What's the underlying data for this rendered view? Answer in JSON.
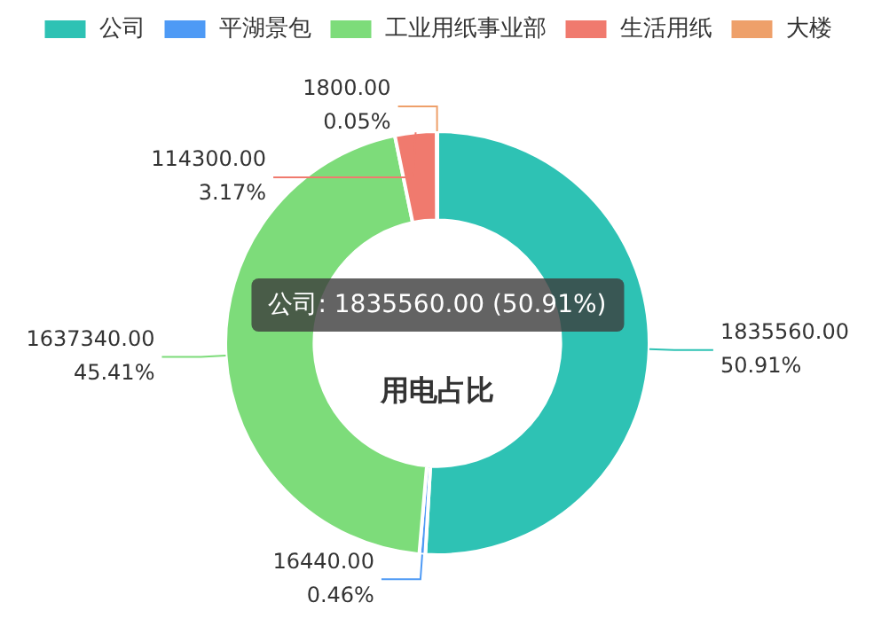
{
  "chart_data": {
    "type": "donut",
    "title": "用电占比",
    "categories": [
      "公司",
      "平湖景包",
      "工业用纸事业部",
      "生活用纸",
      "大楼"
    ],
    "values": [
      1835560,
      16440,
      1637340,
      114300,
      1800
    ],
    "colors": [
      "#2ec2b4",
      "#4e9af5",
      "#7ddc7a",
      "#f07a6e",
      "#eea06a"
    ],
    "value_labels": [
      "1835560.00\n50.91%",
      "16440.00\n0.46%",
      "1637340.00\n45.41%",
      "114300.00\n3.17%",
      "1800.00\n0.05%"
    ],
    "annotations": [
      "公司: 1835560.00 (50.91%)"
    ],
    "legend": "top"
  }
}
